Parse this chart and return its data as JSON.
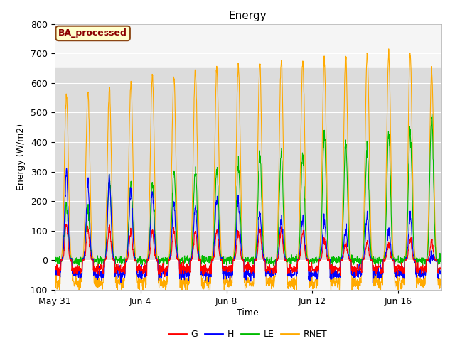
{
  "title": "Energy",
  "xlabel": "Time",
  "ylabel": "Energy (W/m2)",
  "ylim": [
    -100,
    800
  ],
  "yticks": [
    -100,
    0,
    100,
    200,
    300,
    400,
    500,
    600,
    700,
    800
  ],
  "xtick_labels": [
    "May 31",
    "Jun 4",
    "Jun 8",
    "Jun 12",
    "Jun 16"
  ],
  "xtick_positions": [
    0,
    4,
    8,
    12,
    16
  ],
  "legend_labels": [
    "G",
    "H",
    "LE",
    "RNET"
  ],
  "legend_colors": [
    "#ff0000",
    "#0000ff",
    "#00bb00",
    "#ffaa00"
  ],
  "box_label": "BA_processed",
  "box_label_color": "#8b0000",
  "box_bg_color": "#ffffcc",
  "box_edge_color": "#8b4513",
  "shaded_band_low": 0,
  "shaded_band_high": 650,
  "shaded_color": "#dcdcdc",
  "n_days": 18,
  "plot_bg_color": "#f5f5f5",
  "grid_color": "#d0d0d0"
}
